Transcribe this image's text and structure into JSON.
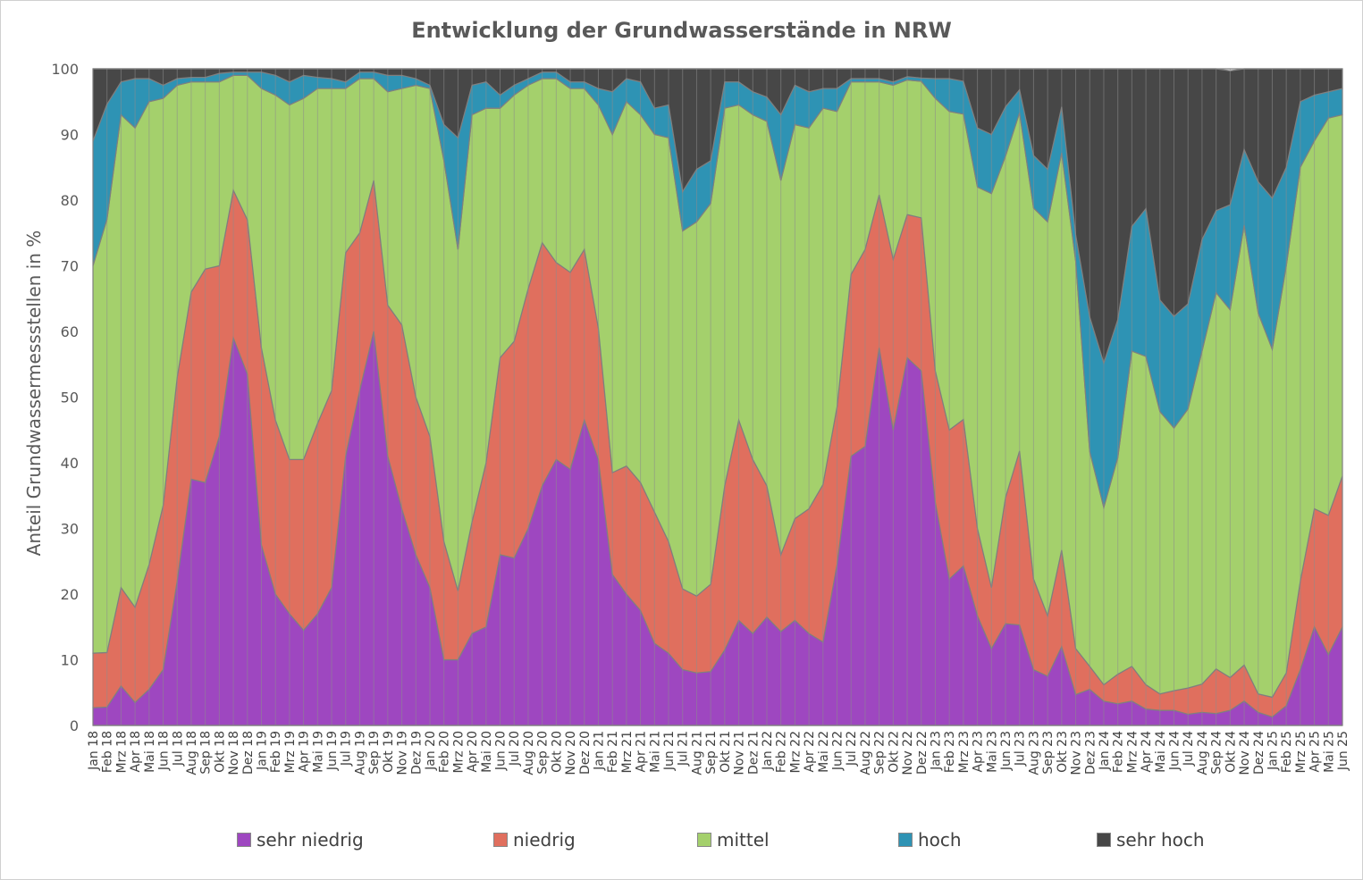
{
  "chart_data": {
    "type": "area",
    "stacked": true,
    "title": "Entwicklung der Grundwasserstände in NRW",
    "ylabel": "Anteil Grundwassermessstellen in %",
    "xlabel": "",
    "ylim": [
      0,
      100
    ],
    "yticks": [
      0,
      10,
      20,
      30,
      40,
      50,
      60,
      70,
      80,
      90,
      100
    ],
    "grid": "vertical lines at each month",
    "legend_position": "bottom",
    "categories": [
      "Jan 18",
      "Feb 18",
      "Mrz 18",
      "Apr 18",
      "Mai 18",
      "Jun 18",
      "Jul 18",
      "Aug 18",
      "Sep 18",
      "Okt 18",
      "Nov 18",
      "Dez 18",
      "Jan 19",
      "Feb 19",
      "Mrz 19",
      "Apr 19",
      "Mai 19",
      "Jun 19",
      "Jul 19",
      "Aug 19",
      "Sep 19",
      "Okt 19",
      "Nov 19",
      "Dez 19",
      "Jan 20",
      "Feb 20",
      "Mrz 20",
      "Apr 20",
      "Mai 20",
      "Jun 20",
      "Jul 20",
      "Aug 20",
      "Sep 20",
      "Okt 20",
      "Nov 20",
      "Dez 20",
      "Jan 21",
      "Feb 21",
      "Mrz 21",
      "Apr 21",
      "Mai 21",
      "Jun 21",
      "Jul 21",
      "Aug 21",
      "Sep 21",
      "Okt 21",
      "Nov 21",
      "Dez 21",
      "Jan 22",
      "Feb 22",
      "Mrz 22",
      "Apr 22",
      "Mai 22",
      "Jun 22",
      "Jul 22",
      "Aug 22",
      "Sep 22",
      "Okt 22",
      "Nov 22",
      "Dez 22",
      "Jan 23",
      "Feb 23",
      "Mrz 23",
      "Apr 23",
      "Mai 23",
      "Jun 23",
      "Jul 23",
      "Aug 23",
      "Sep 23",
      "Okt 23",
      "Nov 23",
      "Dez 23",
      "Jan 24",
      "Feb 24",
      "Mrz 24",
      "Apr 24",
      "Mai 24",
      "Jun 24",
      "Jul 24",
      "Aug 24",
      "Sep 24",
      "Okt 24",
      "Nov 24",
      "Dez 24",
      "Jan 25",
      "Feb 25",
      "Mrz 25",
      "Apr 25",
      "Mai 25",
      "Jun 25"
    ],
    "series": [
      {
        "name": "sehr niedrig",
        "color": "#9e47c0",
        "values": [
          2.7,
          2.8,
          6.0,
          3.5,
          5.5,
          8.5,
          22.0,
          37.5,
          37.0,
          44.0,
          59.0,
          53.5,
          27.5,
          20.0,
          17.0,
          14.5,
          17.0,
          21.0,
          41.0,
          51.0,
          60.0,
          41.0,
          33.0,
          26.0,
          21.0,
          10.0,
          10.0,
          14.0,
          15.0,
          26.0,
          25.5,
          30.0,
          36.5,
          40.5,
          39.0,
          46.5,
          40.5,
          23.0,
          20.0,
          17.5,
          12.5,
          11.0,
          8.5,
          8.0,
          8.2,
          11.5,
          16.0,
          14.0,
          16.5,
          14.3,
          16.0,
          14.0,
          12.7,
          24.5,
          41.0,
          42.5,
          57.5,
          45.0,
          56.0,
          54.0,
          34.0,
          22.3,
          24.3,
          16.7,
          11.7,
          15.5,
          15.3,
          8.5,
          7.5,
          12.0,
          4.7,
          5.5,
          3.7,
          3.3,
          3.7,
          2.5,
          2.3,
          2.3,
          1.7,
          2.0,
          1.8,
          2.3,
          3.7,
          2.0,
          1.3,
          3.0,
          8.5,
          15.0,
          10.8,
          15.0
        ]
      },
      {
        "name": "niedrig",
        "color": "#e06f5e",
        "values": [
          8.3,
          8.3,
          15.0,
          14.5,
          19.0,
          25.0,
          31.0,
          28.5,
          32.5,
          26.0,
          22.5,
          23.5,
          30.0,
          26.5,
          23.5,
          26.0,
          29.0,
          30.0,
          31.0,
          24.0,
          23.0,
          23.0,
          28.0,
          24.0,
          23.0,
          18.0,
          10.5,
          17.0,
          25.0,
          30.0,
          33.0,
          36.5,
          37.0,
          30.0,
          30.0,
          26.0,
          20.0,
          15.5,
          19.5,
          19.5,
          20.0,
          17.0,
          12.3,
          11.7,
          13.3,
          25.0,
          30.5,
          26.5,
          20.0,
          11.7,
          15.5,
          19.0,
          24.0,
          24.0,
          27.7,
          30.0,
          23.3,
          26.0,
          21.8,
          23.3,
          20.0,
          22.7,
          22.3,
          13.3,
          9.3,
          19.2,
          26.5,
          13.8,
          9.2,
          14.7,
          7.0,
          3.5,
          2.5,
          4.5,
          5.3,
          3.7,
          2.5,
          3.0,
          4.0,
          4.3,
          6.8,
          5.0,
          5.5,
          2.8,
          3.0,
          5.0,
          13.5,
          18.0,
          21.2,
          23.0
        ]
      },
      {
        "name": "mittel",
        "color": "#a4d06c",
        "values": [
          59.0,
          66.0,
          72.0,
          73.0,
          70.5,
          62.0,
          44.5,
          32.0,
          28.5,
          28.0,
          17.5,
          22.0,
          39.5,
          49.5,
          54.0,
          55.0,
          51.0,
          46.0,
          25.0,
          23.5,
          15.5,
          32.5,
          36.0,
          47.5,
          53.0,
          58.0,
          52.0,
          62.0,
          54.0,
          38.0,
          37.5,
          31.0,
          25.0,
          28.0,
          28.0,
          24.5,
          34.0,
          51.5,
          55.5,
          56.0,
          57.5,
          61.5,
          54.5,
          57.0,
          58.0,
          57.5,
          48.0,
          52.5,
          55.5,
          57.0,
          60.0,
          58.0,
          57.3,
          45.0,
          29.3,
          25.5,
          17.2,
          26.5,
          20.5,
          20.8,
          41.5,
          48.5,
          46.5,
          52.0,
          60.0,
          52.0,
          51.5,
          56.5,
          60.0,
          60.5,
          59.0,
          32.7,
          27.0,
          33.0,
          48.0,
          50.0,
          43.0,
          40.0,
          42.5,
          50.7,
          57.3,
          56.0,
          67.0,
          58.0,
          53.0,
          62.0,
          63.0,
          56.0,
          60.5,
          55.0
        ]
      },
      {
        "name": "hoch",
        "color": "#2e93b4",
        "values": [
          19.0,
          17.5,
          5.0,
          7.5,
          3.5,
          2.0,
          1.0,
          0.7,
          0.7,
          1.3,
          0.5,
          0.5,
          2.5,
          3.0,
          3.5,
          3.5,
          1.7,
          1.5,
          1.0,
          1.0,
          1.0,
          2.5,
          2.0,
          1.0,
          0.5,
          5.5,
          17.0,
          4.5,
          4.0,
          2.0,
          1.5,
          1.0,
          1.0,
          1.0,
          1.0,
          1.0,
          2.5,
          6.5,
          3.5,
          5.0,
          4.0,
          5.0,
          6.0,
          8.0,
          6.5,
          4.0,
          3.5,
          3.5,
          3.7,
          10.0,
          6.0,
          5.5,
          3.0,
          3.5,
          0.5,
          0.5,
          0.5,
          0.5,
          0.5,
          0.5,
          3.0,
          5.0,
          5.0,
          9.0,
          9.0,
          7.5,
          3.5,
          8.0,
          8.0,
          7.0,
          4.0,
          20.5,
          22.0,
          21.0,
          19.0,
          22.5,
          17.0,
          17.0,
          16.0,
          17.0,
          12.5,
          16.0,
          11.5,
          20.0,
          23.0,
          15.0,
          10.0,
          7.0,
          4.0,
          4.0
        ]
      },
      {
        "name": "sehr hoch",
        "color": "#474747",
        "values": [
          11.0,
          5.4,
          2.0,
          1.5,
          1.5,
          2.5,
          1.5,
          1.3,
          1.3,
          0.7,
          0.5,
          0.5,
          0.5,
          1.0,
          2.0,
          1.0,
          1.3,
          1.5,
          2.0,
          0.5,
          0.5,
          1.0,
          1.0,
          1.5,
          2.5,
          8.5,
          10.5,
          2.5,
          2.0,
          4.0,
          2.5,
          1.5,
          0.5,
          0.5,
          2.0,
          2.0,
          3.0,
          3.5,
          1.5,
          2.0,
          6.0,
          5.5,
          18.7,
          15.3,
          14.0,
          2.0,
          2.0,
          3.5,
          4.3,
          7.0,
          2.5,
          3.5,
          3.0,
          3.0,
          1.5,
          1.5,
          1.5,
          2.0,
          1.2,
          1.4,
          1.5,
          1.5,
          1.9,
          9.0,
          10.0,
          5.8,
          3.2,
          13.2,
          15.3,
          5.8,
          25.3,
          37.8,
          44.8,
          38.2,
          24.0,
          21.3,
          35.2,
          37.7,
          35.8,
          26.0,
          21.6,
          20.4,
          12.3,
          17.2,
          19.7,
          15.0,
          5.0,
          4.0,
          3.5,
          3.0
        ]
      }
    ]
  }
}
